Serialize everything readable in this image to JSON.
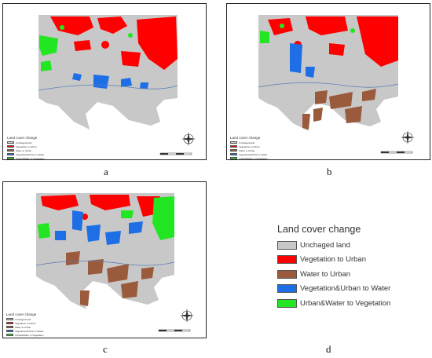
{
  "captions": {
    "a": "a",
    "b": "b",
    "c": "c",
    "d": "d"
  },
  "legend": {
    "title": "Land cover change",
    "items": [
      {
        "label": "Unchaged land",
        "color": "#c8c8c8"
      },
      {
        "label": "Vegetation to Urban",
        "color": "#ff0000"
      },
      {
        "label": "Water to Urban",
        "color": "#9a5a3c"
      },
      {
        "label": "Vegetation&Urban to Water",
        "color": "#1e6ee6"
      },
      {
        "label": "Urban&Water to Vegetation",
        "color": "#22e622"
      }
    ]
  },
  "colors": {
    "land": "#c8c8c8",
    "veg_to_urban": "#ff0000",
    "water_to_urban": "#9a5a3c",
    "to_water": "#1e6ee6",
    "to_vegetation": "#22e622",
    "frame": "#222222"
  },
  "icons": {
    "north_arrow": "compass-rose-icon",
    "scale": "scale-bar"
  }
}
